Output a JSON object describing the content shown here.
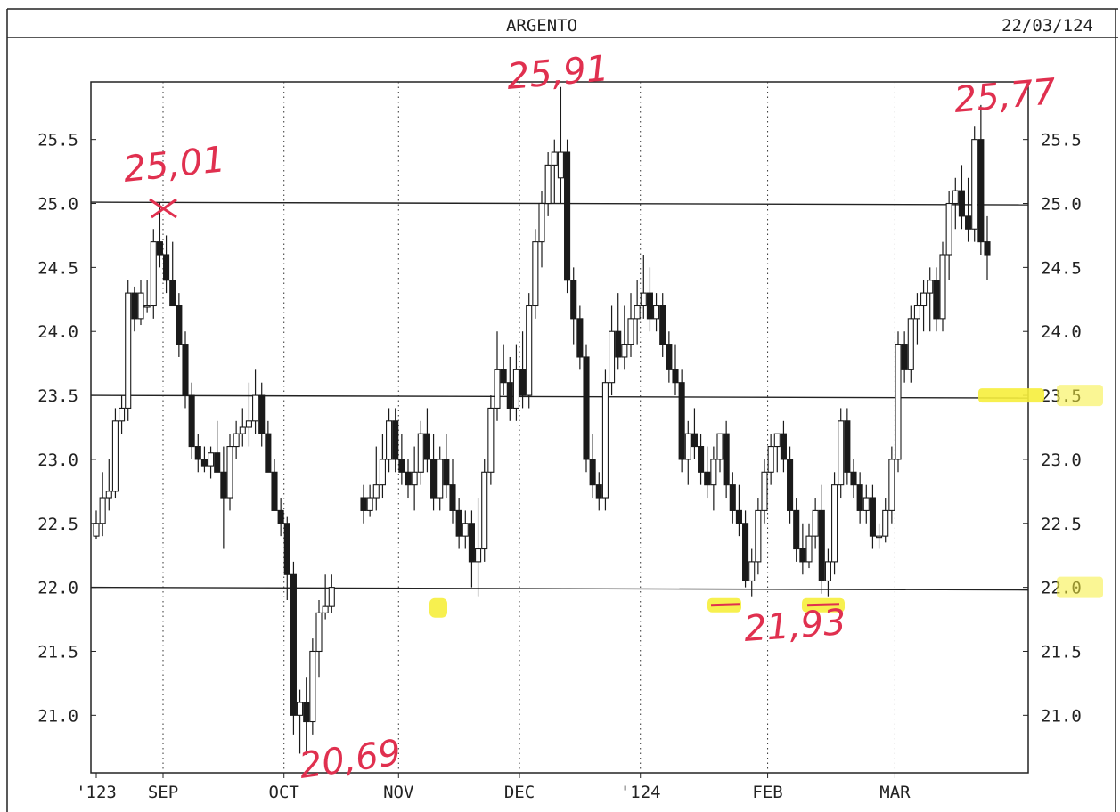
{
  "chart_data": {
    "type": "candlestick",
    "title": "ARGENTO",
    "date": "22/03/124",
    "y_ticks": [
      "25.5",
      "25.0",
      "24.5",
      "24.0",
      "23.5",
      "23.0",
      "22.5",
      "22.0",
      "21.5",
      "21.0"
    ],
    "ylim": [
      20.55,
      25.95
    ],
    "x_labels": [
      "'123",
      "SEP",
      "OCT",
      "NOV",
      "DEC",
      "'124",
      "FEB",
      "MAR"
    ],
    "x_label_sessions": [
      0,
      11,
      30,
      48,
      67,
      86,
      106,
      126
    ],
    "horizontal_levels": [
      25.01,
      23.5,
      22.0
    ],
    "grid": "vertical dotted at month starts",
    "annotations": [
      "25,01",
      "25,91",
      "25,77",
      "20,69",
      "21,93"
    ],
    "highlights": [
      21.93,
      23.5,
      22.0
    ],
    "colors": {
      "annotation": "#e0304f",
      "highlight": "#f6ee3c",
      "bearish": "#1a1a1a",
      "bullish": "#ffffff"
    },
    "candles": [
      {
        "o": 22.4,
        "h": 22.6,
        "l": 22.38,
        "c": 22.5
      },
      {
        "o": 22.5,
        "h": 22.9,
        "l": 22.4,
        "c": 22.7
      },
      {
        "o": 22.7,
        "h": 23.0,
        "l": 22.6,
        "c": 22.75
      },
      {
        "o": 22.75,
        "h": 23.4,
        "l": 22.7,
        "c": 23.3
      },
      {
        "o": 23.3,
        "h": 23.5,
        "l": 23.2,
        "c": 23.4
      },
      {
        "o": 23.4,
        "h": 24.4,
        "l": 23.3,
        "c": 24.3
      },
      {
        "o": 24.3,
        "h": 24.35,
        "l": 24.0,
        "c": 24.1
      },
      {
        "o": 24.1,
        "h": 24.4,
        "l": 24.05,
        "c": 24.3
      },
      {
        "o": 24.2,
        "h": 24.4,
        "l": 24.15,
        "c": 24.2
      },
      {
        "o": 24.2,
        "h": 24.8,
        "l": 24.1,
        "c": 24.7
      },
      {
        "o": 24.7,
        "h": 25.01,
        "l": 24.5,
        "c": 24.6
      },
      {
        "o": 24.6,
        "h": 24.75,
        "l": 24.3,
        "c": 24.4
      },
      {
        "o": 24.4,
        "h": 24.7,
        "l": 24.2,
        "c": 24.2
      },
      {
        "o": 24.2,
        "h": 24.3,
        "l": 23.8,
        "c": 23.9
      },
      {
        "o": 23.9,
        "h": 24.0,
        "l": 23.4,
        "c": 23.5
      },
      {
        "o": 23.5,
        "h": 23.6,
        "l": 23.0,
        "c": 23.1
      },
      {
        "o": 23.1,
        "h": 23.2,
        "l": 22.9,
        "c": 23.0
      },
      {
        "o": 23.0,
        "h": 23.1,
        "l": 22.9,
        "c": 22.95
      },
      {
        "o": 22.95,
        "h": 23.1,
        "l": 22.85,
        "c": 23.05
      },
      {
        "o": 23.05,
        "h": 23.3,
        "l": 22.9,
        "c": 22.9
      },
      {
        "o": 22.9,
        "h": 23.1,
        "l": 22.3,
        "c": 22.7
      },
      {
        "o": 22.7,
        "h": 23.2,
        "l": 22.6,
        "c": 23.1
      },
      {
        "o": 23.1,
        "h": 23.3,
        "l": 23.0,
        "c": 23.2
      },
      {
        "o": 23.2,
        "h": 23.4,
        "l": 23.1,
        "c": 23.25
      },
      {
        "o": 23.25,
        "h": 23.6,
        "l": 23.1,
        "c": 23.3
      },
      {
        "o": 23.3,
        "h": 23.7,
        "l": 23.2,
        "c": 23.5
      },
      {
        "o": 23.5,
        "h": 23.6,
        "l": 23.1,
        "c": 23.2
      },
      {
        "o": 23.2,
        "h": 23.3,
        "l": 22.9,
        "c": 22.9
      },
      {
        "o": 22.9,
        "h": 23.0,
        "l": 22.6,
        "c": 22.6
      },
      {
        "o": 22.6,
        "h": 22.7,
        "l": 22.4,
        "c": 22.5
      },
      {
        "o": 22.5,
        "h": 22.55,
        "l": 21.9,
        "c": 22.1
      },
      {
        "o": 22.1,
        "h": 22.2,
        "l": 20.85,
        "c": 21.0
      },
      {
        "o": 21.0,
        "h": 21.2,
        "l": 20.7,
        "c": 21.1
      },
      {
        "o": 21.1,
        "h": 21.3,
        "l": 20.69,
        "c": 20.95
      },
      {
        "o": 20.95,
        "h": 21.6,
        "l": 20.85,
        "c": 21.5
      },
      {
        "o": 21.5,
        "h": 21.9,
        "l": 21.3,
        "c": 21.8
      },
      {
        "o": 21.8,
        "h": 22.1,
        "l": 21.75,
        "c": 21.85
      },
      {
        "o": 21.85,
        "h": 22.1,
        "l": 21.8,
        "c": 22.0
      },
      null,
      null,
      null,
      null,
      {
        "o": 22.7,
        "h": 22.8,
        "l": 22.5,
        "c": 22.6
      },
      {
        "o": 22.6,
        "h": 22.8,
        "l": 22.55,
        "c": 22.7
      },
      {
        "o": 22.7,
        "h": 23.1,
        "l": 22.6,
        "c": 22.8
      },
      {
        "o": 22.8,
        "h": 23.2,
        "l": 22.7,
        "c": 23.0
      },
      {
        "o": 23.0,
        "h": 23.4,
        "l": 22.9,
        "c": 23.3
      },
      {
        "o": 23.3,
        "h": 23.4,
        "l": 22.9,
        "c": 23.0
      },
      {
        "o": 23.0,
        "h": 23.2,
        "l": 22.8,
        "c": 22.9
      },
      {
        "o": 22.9,
        "h": 23.0,
        "l": 22.7,
        "c": 22.8
      },
      {
        "o": 22.8,
        "h": 23.1,
        "l": 22.6,
        "c": 22.9
      },
      {
        "o": 22.9,
        "h": 23.3,
        "l": 22.8,
        "c": 23.2
      },
      {
        "o": 23.2,
        "h": 23.4,
        "l": 22.9,
        "c": 23.0
      },
      {
        "o": 23.0,
        "h": 23.2,
        "l": 22.6,
        "c": 22.7
      },
      {
        "o": 22.7,
        "h": 23.1,
        "l": 22.6,
        "c": 23.0
      },
      {
        "o": 23.0,
        "h": 23.2,
        "l": 22.7,
        "c": 22.8
      },
      {
        "o": 22.8,
        "h": 23.0,
        "l": 22.5,
        "c": 22.6
      },
      {
        "o": 22.6,
        "h": 22.7,
        "l": 22.3,
        "c": 22.4
      },
      {
        "o": 22.4,
        "h": 22.6,
        "l": 22.3,
        "c": 22.5
      },
      {
        "o": 22.5,
        "h": 22.6,
        "l": 22.0,
        "c": 22.2
      },
      {
        "o": 22.2,
        "h": 22.7,
        "l": 21.93,
        "c": 22.3
      },
      {
        "o": 22.3,
        "h": 23.0,
        "l": 22.2,
        "c": 22.9
      },
      {
        "o": 22.9,
        "h": 23.5,
        "l": 22.8,
        "c": 23.4
      },
      {
        "o": 23.4,
        "h": 24.0,
        "l": 23.3,
        "c": 23.7
      },
      {
        "o": 23.7,
        "h": 23.9,
        "l": 23.5,
        "c": 23.6
      },
      {
        "o": 23.6,
        "h": 23.8,
        "l": 23.3,
        "c": 23.4
      },
      {
        "o": 23.4,
        "h": 23.9,
        "l": 23.3,
        "c": 23.7
      },
      {
        "o": 23.7,
        "h": 24.0,
        "l": 23.4,
        "c": 23.5
      },
      {
        "o": 23.5,
        "h": 24.3,
        "l": 23.4,
        "c": 24.2
      },
      {
        "o": 24.2,
        "h": 24.8,
        "l": 24.1,
        "c": 24.7
      },
      {
        "o": 24.7,
        "h": 25.1,
        "l": 24.5,
        "c": 25.0
      },
      {
        "o": 25.0,
        "h": 25.4,
        "l": 24.9,
        "c": 25.3
      },
      {
        "o": 25.3,
        "h": 25.5,
        "l": 25.0,
        "c": 25.4
      },
      {
        "o": 25.2,
        "h": 25.91,
        "l": 25.0,
        "c": 25.4
      },
      {
        "o": 25.4,
        "h": 25.5,
        "l": 24.3,
        "c": 24.4
      },
      {
        "o": 24.4,
        "h": 24.5,
        "l": 23.9,
        "c": 24.1
      },
      {
        "o": 24.1,
        "h": 24.2,
        "l": 23.7,
        "c": 23.8
      },
      {
        "o": 23.8,
        "h": 23.9,
        "l": 22.9,
        "c": 23.0
      },
      {
        "o": 23.0,
        "h": 23.2,
        "l": 22.7,
        "c": 22.8
      },
      {
        "o": 22.8,
        "h": 22.9,
        "l": 22.6,
        "c": 22.7
      },
      {
        "o": 22.7,
        "h": 23.7,
        "l": 22.6,
        "c": 23.6
      },
      {
        "o": 23.6,
        "h": 24.2,
        "l": 23.5,
        "c": 24.0
      },
      {
        "o": 24.0,
        "h": 24.3,
        "l": 23.7,
        "c": 23.8
      },
      {
        "o": 23.8,
        "h": 24.2,
        "l": 23.7,
        "c": 23.9
      },
      {
        "o": 23.9,
        "h": 24.3,
        "l": 23.8,
        "c": 24.1
      },
      {
        "o": 24.1,
        "h": 24.4,
        "l": 23.9,
        "c": 24.2
      },
      {
        "o": 24.2,
        "h": 24.6,
        "l": 24.1,
        "c": 24.3
      },
      {
        "o": 24.3,
        "h": 24.5,
        "l": 24.0,
        "c": 24.1
      },
      {
        "o": 24.1,
        "h": 24.3,
        "l": 24.0,
        "c": 24.2
      },
      {
        "o": 24.2,
        "h": 24.3,
        "l": 23.8,
        "c": 23.9
      },
      {
        "o": 23.9,
        "h": 24.0,
        "l": 23.6,
        "c": 23.7
      },
      {
        "o": 23.7,
        "h": 23.9,
        "l": 23.5,
        "c": 23.6
      },
      {
        "o": 23.6,
        "h": 23.7,
        "l": 22.9,
        "c": 23.0
      },
      {
        "o": 23.0,
        "h": 23.3,
        "l": 22.8,
        "c": 23.2
      },
      {
        "o": 23.2,
        "h": 23.4,
        "l": 23.0,
        "c": 23.1
      },
      {
        "o": 23.1,
        "h": 23.2,
        "l": 22.8,
        "c": 22.9
      },
      {
        "o": 22.9,
        "h": 23.1,
        "l": 22.7,
        "c": 22.8
      },
      {
        "o": 22.8,
        "h": 23.1,
        "l": 22.6,
        "c": 23.0
      },
      {
        "o": 23.0,
        "h": 23.2,
        "l": 22.9,
        "c": 23.2
      },
      {
        "o": 23.2,
        "h": 23.3,
        "l": 22.7,
        "c": 22.8
      },
      {
        "o": 22.8,
        "h": 22.9,
        "l": 22.5,
        "c": 22.6
      },
      {
        "o": 22.6,
        "h": 22.8,
        "l": 22.4,
        "c": 22.5
      },
      {
        "o": 22.5,
        "h": 22.6,
        "l": 22.0,
        "c": 22.05
      },
      {
        "o": 22.05,
        "h": 22.3,
        "l": 21.93,
        "c": 22.2
      },
      {
        "o": 22.2,
        "h": 22.7,
        "l": 22.1,
        "c": 22.6
      },
      {
        "o": 22.6,
        "h": 23.0,
        "l": 22.5,
        "c": 22.9
      },
      {
        "o": 22.9,
        "h": 23.2,
        "l": 22.8,
        "c": 23.1
      },
      {
        "o": 23.1,
        "h": 23.2,
        "l": 22.9,
        "c": 23.2
      },
      {
        "o": 23.2,
        "h": 23.3,
        "l": 22.9,
        "c": 23.0
      },
      {
        "o": 23.0,
        "h": 23.1,
        "l": 22.5,
        "c": 22.6
      },
      {
        "o": 22.6,
        "h": 22.7,
        "l": 22.2,
        "c": 22.3
      },
      {
        "o": 22.3,
        "h": 22.5,
        "l": 22.1,
        "c": 22.2
      },
      {
        "o": 22.2,
        "h": 22.5,
        "l": 22.15,
        "c": 22.4
      },
      {
        "o": 22.4,
        "h": 22.7,
        "l": 22.3,
        "c": 22.6
      },
      {
        "o": 22.6,
        "h": 22.8,
        "l": 21.95,
        "c": 22.05
      },
      {
        "o": 22.05,
        "h": 22.3,
        "l": 21.93,
        "c": 22.2
      },
      {
        "o": 22.2,
        "h": 22.9,
        "l": 22.1,
        "c": 22.8
      },
      {
        "o": 22.8,
        "h": 23.4,
        "l": 22.7,
        "c": 23.3
      },
      {
        "o": 23.3,
        "h": 23.4,
        "l": 22.8,
        "c": 22.9
      },
      {
        "o": 22.9,
        "h": 23.0,
        "l": 22.7,
        "c": 22.8
      },
      {
        "o": 22.8,
        "h": 22.9,
        "l": 22.5,
        "c": 22.6
      },
      {
        "o": 22.6,
        "h": 22.8,
        "l": 22.5,
        "c": 22.7
      },
      {
        "o": 22.7,
        "h": 22.8,
        "l": 22.3,
        "c": 22.4
      },
      {
        "o": 22.4,
        "h": 22.5,
        "l": 22.3,
        "c": 22.4
      },
      {
        "o": 22.4,
        "h": 22.7,
        "l": 22.35,
        "c": 22.6
      },
      {
        "o": 22.6,
        "h": 23.1,
        "l": 22.5,
        "c": 23.0
      },
      {
        "o": 23.0,
        "h": 24.0,
        "l": 22.9,
        "c": 23.9
      },
      {
        "o": 23.9,
        "h": 24.0,
        "l": 23.6,
        "c": 23.7
      },
      {
        "o": 23.7,
        "h": 24.2,
        "l": 23.6,
        "c": 24.1
      },
      {
        "o": 24.1,
        "h": 24.3,
        "l": 23.9,
        "c": 24.2
      },
      {
        "o": 24.2,
        "h": 24.4,
        "l": 24.0,
        "c": 24.3
      },
      {
        "o": 24.3,
        "h": 24.5,
        "l": 24.0,
        "c": 24.4
      },
      {
        "o": 24.4,
        "h": 24.5,
        "l": 24.0,
        "c": 24.1
      },
      {
        "o": 24.1,
        "h": 24.7,
        "l": 24.0,
        "c": 24.6
      },
      {
        "o": 24.6,
        "h": 25.1,
        "l": 24.4,
        "c": 25.0
      },
      {
        "o": 25.0,
        "h": 25.2,
        "l": 24.8,
        "c": 25.1
      },
      {
        "o": 25.1,
        "h": 25.3,
        "l": 24.8,
        "c": 24.9
      },
      {
        "o": 24.9,
        "h": 25.2,
        "l": 24.7,
        "c": 24.8
      },
      {
        "o": 24.8,
        "h": 25.6,
        "l": 24.7,
        "c": 25.5
      },
      {
        "o": 25.5,
        "h": 25.77,
        "l": 24.6,
        "c": 24.7
      },
      {
        "o": 24.7,
        "h": 24.9,
        "l": 24.4,
        "c": 24.6
      }
    ]
  }
}
